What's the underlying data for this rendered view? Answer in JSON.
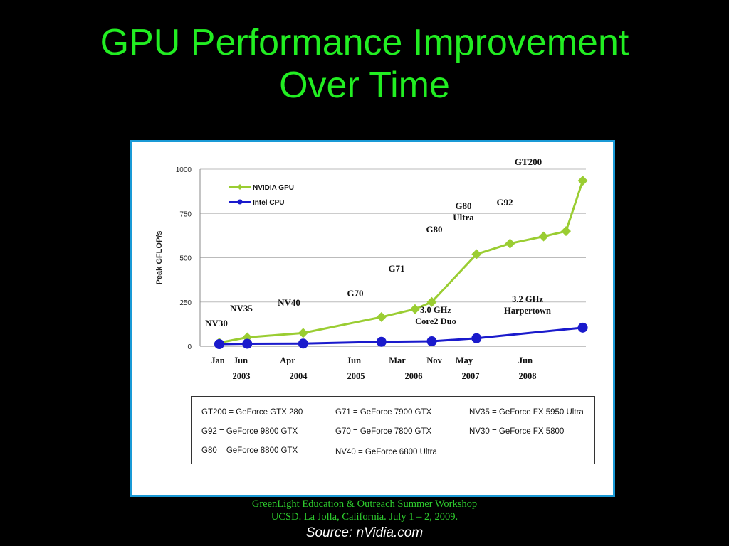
{
  "slide": {
    "title_line1": "GPU Performance Improvement",
    "title_line2": "Over Time",
    "footer_line1": "GreenLight Education & Outreach Summer Workshop",
    "footer_line2": "UCSD. La Jolla, California. July 1 – 2, 2009.",
    "source": "Source: nVidia.com"
  },
  "colors": {
    "title": "#22ee22",
    "frame_border": "#1a9ad6",
    "nvidia": "#9acd32",
    "intel": "#1a1acc"
  },
  "gpu_key": [
    [
      "GT200 = GeForce GTX 280",
      "G71 = GeForce 7900 GTX",
      "NV35 = GeForce FX 5950 Ultra"
    ],
    [
      "G92 = GeForce 9800 GTX",
      "G70 = GeForce 7800 GTX",
      "NV30 = GeForce FX 5800"
    ],
    [
      "G80 = GeForce 8800 GTX",
      "NV40 = GeForce 6800 Ultra",
      ""
    ]
  ],
  "chart_data": {
    "type": "line",
    "title": "",
    "xlabel": "",
    "ylabel": "Peak GFLOP/s",
    "ylim": [
      0,
      1000
    ],
    "yticks": [
      "0",
      "250",
      "500",
      "750",
      "1000"
    ],
    "grid": true,
    "legend_position": "top-left",
    "x_month_labels": [
      "Jan",
      "Jun",
      "Apr",
      "Jun",
      "Mar",
      "Nov",
      "May",
      "Jun"
    ],
    "x_year_labels": [
      "2003",
      "2004",
      "2005",
      "2006",
      "2007",
      "2008"
    ],
    "series": [
      {
        "name": "NVIDIA GPU",
        "color": "#9acd32",
        "marker": "diamond",
        "points": [
          {
            "date": "2003-01",
            "y": 20,
            "label": "NV30"
          },
          {
            "date": "2003-06",
            "y": 50,
            "label": "NV35"
          },
          {
            "date": "2004-04",
            "y": 75,
            "label": "NV40"
          },
          {
            "date": "2005-06",
            "y": 165,
            "label": "G70"
          },
          {
            "date": "2005-12",
            "y": 210,
            "label": ""
          },
          {
            "date": "2006-03",
            "y": 250,
            "label": "G71"
          },
          {
            "date": "2006-11",
            "y": 520,
            "label": "G80"
          },
          {
            "date": "2007-05",
            "y": 580,
            "label": "G80 Ultra"
          },
          {
            "date": "2007-11",
            "y": 620,
            "label": ""
          },
          {
            "date": "2008-03",
            "y": 650,
            "label": "G92"
          },
          {
            "date": "2008-06",
            "y": 935,
            "label": "GT200"
          }
        ]
      },
      {
        "name": "Intel CPU",
        "color": "#1a1acc",
        "marker": "circle",
        "points": [
          {
            "date": "2003-01",
            "y": 12,
            "label": ""
          },
          {
            "date": "2003-06",
            "y": 14,
            "label": ""
          },
          {
            "date": "2004-04",
            "y": 15,
            "label": ""
          },
          {
            "date": "2005-06",
            "y": 25,
            "label": ""
          },
          {
            "date": "2006-03",
            "y": 28,
            "label": ""
          },
          {
            "date": "2006-11",
            "y": 45,
            "label": "3.0 GHz Core2 Duo"
          },
          {
            "date": "2008-06",
            "y": 105,
            "label": "3.2 GHz Harpertown"
          }
        ]
      }
    ]
  }
}
